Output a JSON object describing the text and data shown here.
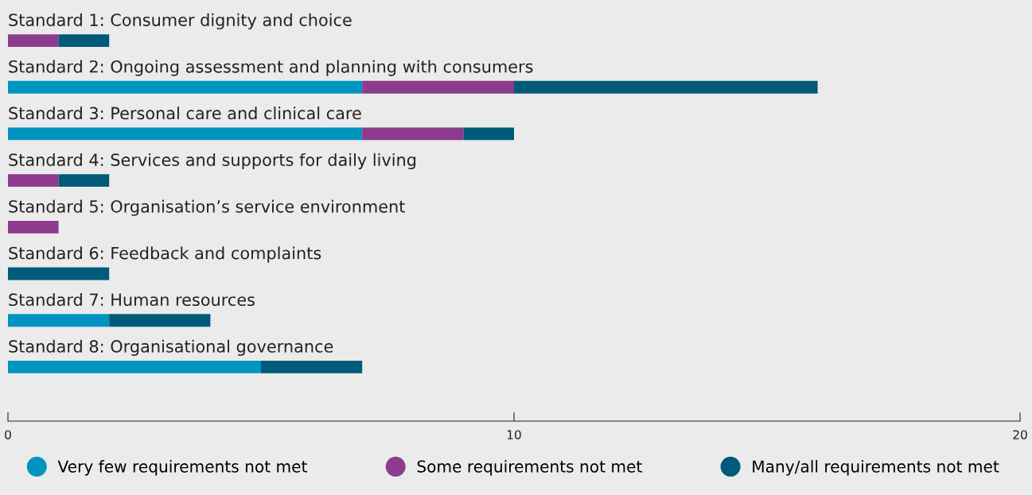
{
  "chart_data": {
    "type": "bar",
    "orientation": "horizontal",
    "stacked": true,
    "categories": [
      "Standard 1: Consumer dignity and choice",
      "Standard 2: Ongoing assessment and planning with consumers",
      "Standard 3: Personal care and clinical care",
      "Standard 4: Services and supports for daily living",
      "Standard 5: Organisation’s service environment",
      "Standard 6: Feedback and complaints",
      "Standard 7: Human resources",
      "Standard 8: Organisational governance"
    ],
    "series": [
      {
        "name": "Very few requirements not met",
        "color": "#0094c0",
        "values": [
          0,
          7,
          7,
          0,
          0,
          0,
          2,
          5
        ]
      },
      {
        "name": "Some requirements not met",
        "color": "#8c3b8e",
        "values": [
          1,
          3,
          2,
          1,
          1,
          0,
          0,
          0
        ]
      },
      {
        "name": "Many/all requirements not met",
        "color": "#005a7a",
        "values": [
          1,
          6,
          1,
          1,
          0,
          2,
          2,
          2
        ]
      }
    ],
    "xlim": [
      0,
      20
    ],
    "xticks": [
      0,
      10,
      20
    ],
    "grid": false,
    "legend": "bottom",
    "marker": "circle"
  }
}
